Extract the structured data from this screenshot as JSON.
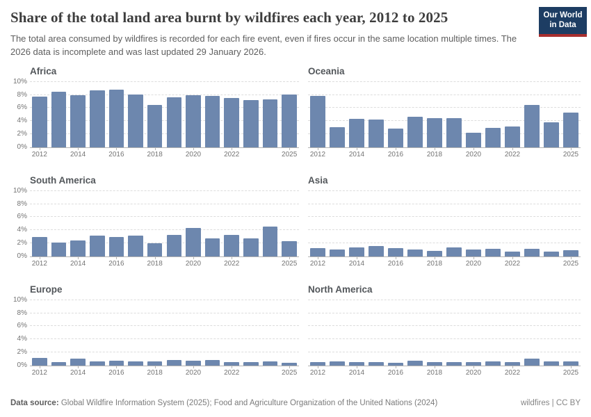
{
  "header": {
    "title": "Share of the total land area burnt by wildfires each year, 2012 to 2025",
    "subtitle": "The total area consumed by wildfires is recorded for each fire event, even if fires occur in the same location multiple times. The 2026 data is incomplete and was last updated 29 January 2026.",
    "logo": {
      "line1": "Our World",
      "line2": "in Data"
    }
  },
  "footer": {
    "datasource_label": "Data source:",
    "datasource_text": " Global Wildfire Information System (2025); Food and Agriculture Organization of the United Nations (2024)",
    "license": "wildfires | CC BY"
  },
  "colors": {
    "bar": "#6d87ae",
    "logo_bg": "#1d3d63",
    "logo_accent": "#a82e2e",
    "gridline": "#dcdcdc",
    "axis_line": "#b3b3b3",
    "tick_label": "#737373"
  },
  "chart_data": {
    "type": "bar",
    "layout": "small-multiples 3 rows x 2 cols",
    "title": "Share of the total land area burnt by wildfires each year, 2012 to 2025",
    "xlabel": "",
    "ylabel": "",
    "x": [
      2012,
      2013,
      2014,
      2015,
      2016,
      2017,
      2018,
      2019,
      2020,
      2021,
      2022,
      2023,
      2024,
      2025
    ],
    "x_tick_labels": [
      2012,
      2014,
      2016,
      2018,
      2020,
      2022,
      2025
    ],
    "ylim": [
      0,
      10
    ],
    "yticks": [
      0,
      2,
      4,
      6,
      8,
      10
    ],
    "ytick_suffix": "%",
    "grid": true,
    "legend": "none",
    "y_axis_shown_on": "left column panels only",
    "series": [
      {
        "name": "Africa",
        "values": [
          7.7,
          8.5,
          7.9,
          8.7,
          8.8,
          8.1,
          6.5,
          7.6,
          8.0,
          7.8,
          7.5,
          7.2,
          7.3,
          8.1
        ]
      },
      {
        "name": "Oceania",
        "values": [
          7.8,
          3.1,
          4.3,
          4.2,
          2.8,
          4.6,
          4.4,
          4.4,
          2.2,
          3.0,
          3.2,
          6.5,
          3.8,
          5.3
        ]
      },
      {
        "name": "South America",
        "values": [
          3.0,
          2.1,
          2.4,
          3.2,
          2.9,
          3.2,
          2.0,
          3.3,
          4.3,
          2.7,
          3.3,
          2.7,
          4.5,
          2.3
        ]
      },
      {
        "name": "Asia",
        "values": [
          1.2,
          1.0,
          1.4,
          1.6,
          1.2,
          1.0,
          0.8,
          1.4,
          1.0,
          1.1,
          0.7,
          1.1,
          0.7,
          0.9
        ]
      },
      {
        "name": "Europe",
        "values": [
          1.1,
          0.5,
          1.0,
          0.6,
          0.7,
          0.6,
          0.6,
          0.8,
          0.7,
          0.8,
          0.5,
          0.5,
          0.6,
          0.4
        ]
      },
      {
        "name": "North America",
        "values": [
          0.5,
          0.65,
          0.45,
          0.55,
          0.4,
          0.75,
          0.45,
          0.55,
          0.55,
          0.65,
          0.55,
          1.05,
          0.6,
          0.65
        ]
      }
    ]
  }
}
